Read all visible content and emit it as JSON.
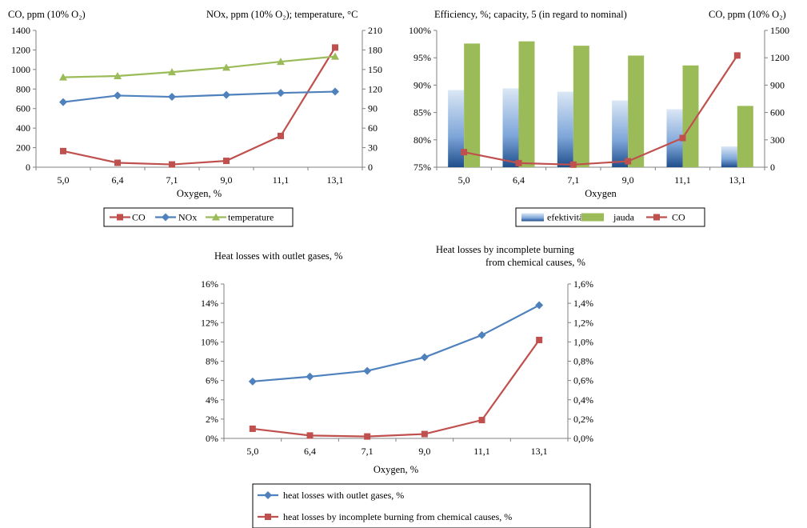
{
  "chart_data": [
    {
      "id": "chart1",
      "type": "line",
      "xlabel": "Oxygen, %",
      "categories": [
        "5,0",
        "6,4",
        "7,1",
        "9,0",
        "11,1",
        "13,1"
      ],
      "left_axis_title": "CO, ppm (10% O₂)",
      "right_axis_title": "NOx, ppm (10% O₂); temperature, °C",
      "ylim_left": [
        0,
        1400
      ],
      "ylim_right": [
        0,
        210
      ],
      "yticks_left": [
        "0",
        "200",
        "400",
        "600",
        "800",
        "1000",
        "1200",
        "1400"
      ],
      "yticks_right": [
        "0",
        "30",
        "60",
        "90",
        "120",
        "150",
        "180",
        "210"
      ],
      "grid": false,
      "legend_position": "bottom",
      "series": [
        {
          "name": "CO",
          "axis": "left",
          "marker": "square",
          "color": "#c0504d",
          "values": [
            165,
            45,
            28,
            65,
            320,
            1225
          ]
        },
        {
          "name": "NOx",
          "axis": "right",
          "marker": "diamond",
          "color": "#4f81bd",
          "values": [
            100,
            110,
            108,
            111,
            114,
            116
          ]
        },
        {
          "name": "temperature",
          "axis": "right",
          "marker": "triangle",
          "color": "#9bbb59",
          "values": [
            138,
            140,
            146,
            153,
            162,
            170
          ]
        }
      ]
    },
    {
      "id": "chart2",
      "type": "bar",
      "xlabel": "Oxygen",
      "categories": [
        "5,0",
        "6,4",
        "7,1",
        "9,0",
        "11,1",
        "13,1"
      ],
      "left_axis_title": "Efficiency, %; capacity, 5 (in regard to nominal)",
      "right_axis_title": "CO, ppm (10% O₂)",
      "ylim_left": [
        75,
        100
      ],
      "ylim_right": [
        0,
        1500
      ],
      "yticks_left": [
        "75%",
        "80%",
        "85%",
        "90%",
        "95%",
        "100%"
      ],
      "yticks_right": [
        "0",
        "300",
        "600",
        "900",
        "1200",
        "1500"
      ],
      "grid": false,
      "legend_position": "bottom",
      "series": [
        {
          "name": "efektivitāte",
          "kind": "bar",
          "axis": "left",
          "color": "#4f81bd",
          "values": [
            89.1,
            89.4,
            88.8,
            87.2,
            85.6,
            78.8
          ]
        },
        {
          "name": "jauda",
          "kind": "bar",
          "axis": "left",
          "color": "#9bbb59",
          "values": [
            97.6,
            98.0,
            97.2,
            95.4,
            93.6,
            86.2
          ]
        },
        {
          "name": "CO",
          "kind": "line",
          "axis": "right",
          "marker": "square",
          "color": "#c0504d",
          "values": [
            165,
            45,
            28,
            65,
            320,
            1225
          ]
        }
      ]
    },
    {
      "id": "chart3",
      "type": "line",
      "xlabel": "Oxygen, %",
      "categories": [
        "5,0",
        "6,4",
        "7,1",
        "9,0",
        "11,1",
        "13,1"
      ],
      "left_axis_title": "Heat losses with outlet gases, %",
      "right_axis_title_lines": [
        "Heat losses by incomplete burning",
        "from chemical causes, %"
      ],
      "ylim_left": [
        0,
        16
      ],
      "ylim_right": [
        0,
        1.6
      ],
      "yticks_left": [
        "0%",
        "2%",
        "4%",
        "6%",
        "8%",
        "10%",
        "12%",
        "14%",
        "16%"
      ],
      "yticks_right": [
        "0,0%",
        "0,2%",
        "0,4%",
        "0,6%",
        "0,8%",
        "1,0%",
        "1,2%",
        "1,4%",
        "1,6%"
      ],
      "grid": false,
      "legend_position": "bottom",
      "series": [
        {
          "name": "heat losses with outlet gases, %",
          "axis": "left",
          "marker": "diamond",
          "color": "#4f81bd",
          "values": [
            5.9,
            6.4,
            7.0,
            8.4,
            10.7,
            13.8
          ]
        },
        {
          "name": "heat losses by incomplete burning from chemical causes, %",
          "axis": "right",
          "marker": "square",
          "color": "#c0504d",
          "values": [
            0.1,
            0.03,
            0.02,
            0.045,
            0.19,
            1.02
          ]
        }
      ]
    }
  ]
}
